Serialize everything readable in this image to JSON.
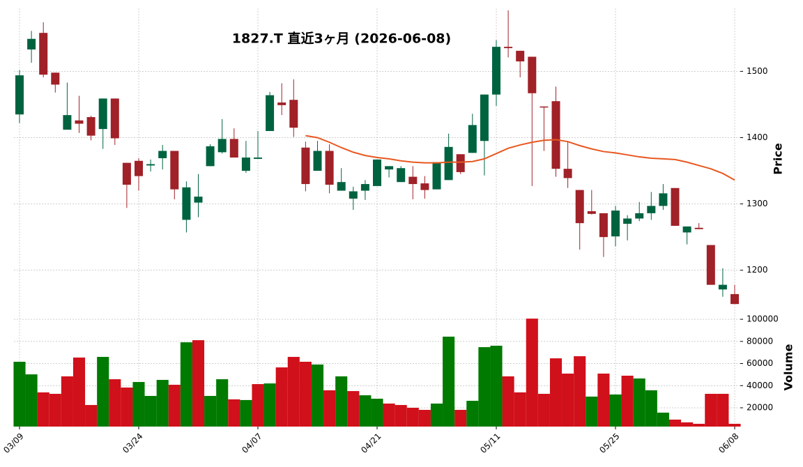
{
  "chart_data": [
    {
      "type": "candlestick",
      "title": "1827.T  直近3ヶ月  (2026-06-08)",
      "ylabel": "Price",
      "categories": [
        "03/09",
        null,
        null,
        null,
        null,
        null,
        null,
        null,
        null,
        null,
        "03/24",
        null,
        null,
        null,
        null,
        null,
        null,
        null,
        null,
        null,
        "04/07",
        null,
        null,
        null,
        null,
        null,
        null,
        null,
        null,
        null,
        "04/21",
        null,
        null,
        null,
        null,
        null,
        null,
        null,
        null,
        null,
        "05/11",
        null,
        null,
        null,
        null,
        null,
        null,
        null,
        null,
        null,
        "05/25",
        null,
        null,
        null,
        null,
        null,
        null,
        null,
        null,
        null,
        "06/08"
      ],
      "open": [
        1435,
        1533,
        1558,
        1498,
        1412,
        1426,
        1431,
        1413,
        1459,
        1362,
        1365,
        1358,
        1369,
        1380,
        1276,
        1302,
        1357,
        1378,
        1398,
        1350,
        1368,
        1410,
        1453,
        1457,
        1385,
        1350,
        1380,
        1320,
        1308,
        1320,
        1327,
        1352,
        1333,
        1341,
        1331,
        1322,
        1336,
        1375,
        1377,
        1395,
        1465,
        1537,
        1531,
        1522,
        1447,
        1455,
        1353,
        1321,
        1289,
        1286,
        1251,
        1270,
        1278,
        1286,
        1297,
        1324,
        1257,
        1264,
        1238,
        1171,
        1164
      ],
      "high": [
        1502,
        1561,
        1574,
        1498,
        1483,
        1463,
        1433,
        1459,
        1459,
        1362,
        1369,
        1367,
        1389,
        1380,
        1334,
        1345,
        1390,
        1428,
        1414,
        1395,
        1410,
        1469,
        1482,
        1488,
        1394,
        1395,
        1390,
        1354,
        1326,
        1336,
        1367,
        1357,
        1357,
        1357,
        1342,
        1363,
        1406,
        1375,
        1436,
        1465,
        1547,
        1592,
        1531,
        1522,
        1447,
        1477,
        1395,
        1321,
        1321,
        1286,
        1297,
        1283,
        1303,
        1318,
        1330,
        1324,
        1266,
        1271,
        1238,
        1203,
        1178
      ],
      "low": [
        1422,
        1513,
        1491,
        1468,
        1412,
        1407,
        1396,
        1383,
        1389,
        1294,
        1320,
        1349,
        1352,
        1307,
        1257,
        1280,
        1357,
        1376,
        1370,
        1347,
        1368,
        1410,
        1434,
        1401,
        1319,
        1350,
        1316,
        1320,
        1291,
        1306,
        1327,
        1340,
        1333,
        1307,
        1308,
        1322,
        1336,
        1345,
        1377,
        1343,
        1448,
        1521,
        1491,
        1327,
        1380,
        1341,
        1324,
        1231,
        1284,
        1220,
        1236,
        1245,
        1274,
        1276,
        1291,
        1267,
        1239,
        1262,
        1178,
        1160,
        1149
      ],
      "close": [
        1494,
        1549,
        1495,
        1480,
        1434,
        1421,
        1403,
        1459,
        1399,
        1329,
        1342,
        1360,
        1380,
        1322,
        1325,
        1311,
        1387,
        1398,
        1370,
        1370,
        1370,
        1464,
        1449,
        1415,
        1330,
        1380,
        1329,
        1333,
        1319,
        1330,
        1367,
        1357,
        1354,
        1330,
        1321,
        1363,
        1386,
        1348,
        1419,
        1465,
        1537,
        1535,
        1515,
        1467,
        1446,
        1353,
        1339,
        1271,
        1285,
        1250,
        1290,
        1278,
        1286,
        1297,
        1316,
        1267,
        1266,
        1262,
        1178,
        1178,
        1149
      ],
      "up_color": "#006340",
      "down_color": "#a02128",
      "ma": {
        "color": "#e8571e",
        "values": [
          null,
          null,
          null,
          null,
          null,
          null,
          null,
          null,
          null,
          null,
          null,
          null,
          null,
          null,
          null,
          null,
          null,
          null,
          null,
          null,
          null,
          null,
          null,
          null,
          1403,
          1400,
          1393,
          1385,
          1378,
          1373,
          1370,
          1368,
          1365,
          1363,
          1362,
          1362,
          1363,
          1363,
          1364,
          1368,
          1376,
          1384,
          1389,
          1393,
          1396,
          1397,
          1394,
          1388,
          1383,
          1379,
          1377,
          1374,
          1371,
          1369,
          1368,
          1367,
          1363,
          1358,
          1353,
          1346,
          1336
        ]
      },
      "ylim": [
        1145,
        1595
      ],
      "yticks": [
        1200,
        1300,
        1400,
        1500
      ],
      "grid": true
    },
    {
      "type": "bar",
      "ylabel": "Volume",
      "values": [
        61600,
        50200,
        33900,
        32600,
        48400,
        65400,
        22500,
        66000,
        45800,
        38300,
        43300,
        30700,
        45200,
        40800,
        79200,
        81100,
        30700,
        45800,
        27600,
        27000,
        41400,
        42000,
        56500,
        66000,
        61600,
        59100,
        35800,
        48400,
        35100,
        31300,
        28200,
        23800,
        22500,
        20000,
        18100,
        23800,
        84300,
        18100,
        26300,
        74800,
        76100,
        48400,
        33900,
        100600,
        32600,
        64700,
        50900,
        66600,
        30100,
        50900,
        32000,
        49000,
        46500,
        35800,
        15600,
        9300,
        6800,
        5500,
        32600,
        32600,
        5500
      ],
      "colors": [
        "#007a00",
        "#007a00",
        "#d0101a",
        "#d0101a",
        "#d0101a",
        "#d0101a",
        "#d0101a",
        "#007a00",
        "#d0101a",
        "#d0101a",
        "#007a00",
        "#007a00",
        "#007a00",
        "#d0101a",
        "#007a00",
        "#d0101a",
        "#007a00",
        "#007a00",
        "#d0101a",
        "#007a00",
        "#d0101a",
        "#007a00",
        "#d0101a",
        "#d0101a",
        "#d0101a",
        "#007a00",
        "#d0101a",
        "#007a00",
        "#d0101a",
        "#007a00",
        "#007a00",
        "#d0101a",
        "#d0101a",
        "#d0101a",
        "#d0101a",
        "#007a00",
        "#007a00",
        "#d0101a",
        "#007a00",
        "#007a00",
        "#007a00",
        "#d0101a",
        "#d0101a",
        "#d0101a",
        "#d0101a",
        "#d0101a",
        "#d0101a",
        "#d0101a",
        "#007a00",
        "#d0101a",
        "#007a00",
        "#d0101a",
        "#007a00",
        "#007a00",
        "#007a00",
        "#d0101a",
        "#d0101a",
        "#d0101a",
        "#d0101a",
        "#d0101a",
        "#d0101a"
      ],
      "ylim": [
        3000,
        109500
      ],
      "yticks": [
        20000,
        40000,
        60000,
        80000,
        100000
      ],
      "grid": true
    }
  ]
}
